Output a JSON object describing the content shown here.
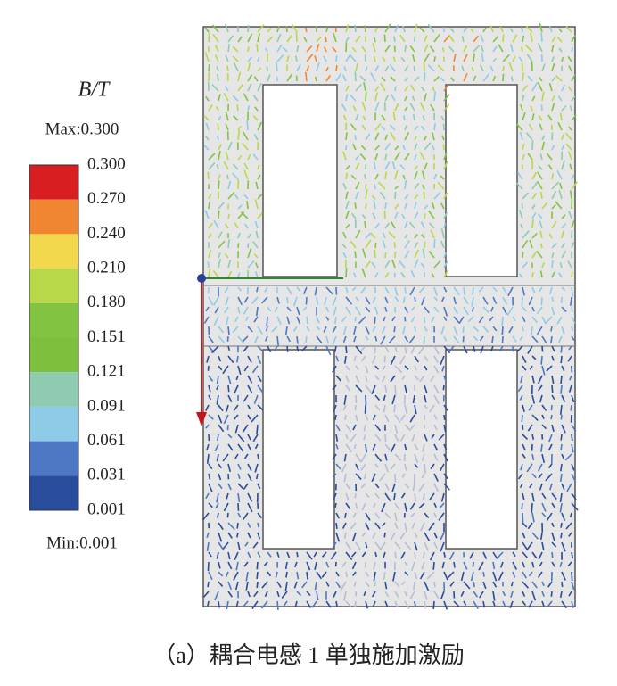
{
  "legend": {
    "title": "B/T",
    "max": "Max:0.300",
    "min": "Min:0.001",
    "levels": [
      "0.300",
      "0.270",
      "0.240",
      "0.210",
      "0.180",
      "0.151",
      "0.121",
      "0.091",
      "0.061",
      "0.031",
      "0.001"
    ],
    "colors": [
      "#d81e20",
      "#f08632",
      "#f2d84c",
      "#b8d84a",
      "#82c341",
      "#7fbf3e",
      "#8ecbb0",
      "#8ecbe6",
      "#4d78c4",
      "#2a4c9c"
    ]
  },
  "caption": "（a）耦合电感 1 单独施加激励"
}
